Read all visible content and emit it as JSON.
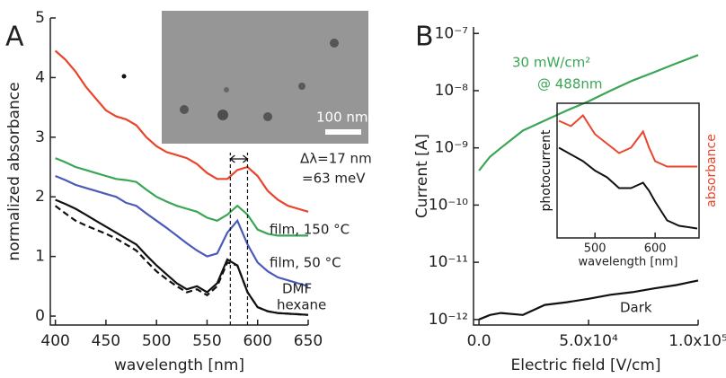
{
  "chart_data": [
    {
      "type": "line",
      "panel_label": "A",
      "xlabel": "wavelength [nm]",
      "ylabel": "normalized absorbance",
      "xlim": [
        395,
        650
      ],
      "ylim": [
        -0.15,
        5
      ],
      "xticks": [
        400,
        450,
        500,
        550,
        600,
        650
      ],
      "yticks": [
        0,
        1,
        2,
        3,
        4,
        5
      ],
      "x": [
        400,
        410,
        420,
        430,
        440,
        450,
        460,
        470,
        480,
        490,
        500,
        510,
        520,
        530,
        540,
        550,
        560,
        570,
        580,
        590,
        600,
        610,
        620,
        630,
        640,
        650
      ],
      "series": [
        {
          "name": "film, 150 °C",
          "color": "#e8452c",
          "values": [
            4.45,
            4.3,
            4.1,
            3.85,
            3.65,
            3.45,
            3.35,
            3.3,
            3.2,
            3.0,
            2.85,
            2.75,
            2.7,
            2.65,
            2.55,
            2.4,
            2.3,
            2.3,
            2.45,
            2.5,
            2.35,
            2.1,
            1.95,
            1.85,
            1.8,
            1.75
          ]
        },
        {
          "name": "film, 50 °C",
          "color": "#3aa655",
          "values": [
            2.65,
            2.58,
            2.5,
            2.45,
            2.4,
            2.35,
            2.3,
            2.28,
            2.25,
            2.12,
            2.0,
            1.92,
            1.85,
            1.8,
            1.75,
            1.65,
            1.6,
            1.7,
            1.85,
            1.7,
            1.45,
            1.38,
            1.35,
            1.35,
            1.35,
            1.35
          ]
        },
        {
          "name": "DMF",
          "color": "#4a5ab8",
          "values": [
            2.35,
            2.28,
            2.2,
            2.15,
            2.1,
            2.05,
            2.0,
            1.9,
            1.85,
            1.72,
            1.6,
            1.48,
            1.35,
            1.22,
            1.1,
            1.0,
            1.05,
            1.4,
            1.6,
            1.2,
            0.9,
            0.75,
            0.65,
            0.6,
            0.55,
            0.5
          ]
        },
        {
          "name": "hexane",
          "color": "#111111",
          "values": [
            1.95,
            1.88,
            1.8,
            1.7,
            1.6,
            1.5,
            1.4,
            1.3,
            1.2,
            1.02,
            0.85,
            0.7,
            0.55,
            0.45,
            0.5,
            0.4,
            0.55,
            0.95,
            0.85,
            0.4,
            0.15,
            0.08,
            0.05,
            0.04,
            0.03,
            0.02
          ]
        },
        {
          "color": "#111111",
          "dashed": true,
          "values": [
            1.85,
            1.72,
            1.6,
            1.52,
            1.45,
            1.38,
            1.3,
            1.2,
            1.1,
            0.92,
            0.75,
            0.62,
            0.5,
            0.4,
            0.45,
            0.35,
            0.5,
            0.9,
            0.85,
            0.4,
            0.15,
            0.08,
            0.05,
            0.04,
            0.03,
            0.02
          ]
        }
      ],
      "vlines": [
        573,
        590
      ],
      "annotations": [
        "Δλ=17 nm",
        "=63 meV",
        "100 nm"
      ]
    },
    {
      "type": "line",
      "panel_label": "B",
      "xlabel": "Electric field [V/cm]",
      "ylabel": "Current [A]",
      "log_y": true,
      "xlim": [
        -2500,
        100000
      ],
      "ylim": [
        8e-13,
        1.3e-07
      ],
      "xticks": [
        {
          "value": 0,
          "label": "0.0"
        },
        {
          "value": 50000,
          "label": "5.0x10⁴"
        },
        {
          "value": 100000,
          "label": "1.0x10⁵"
        }
      ],
      "yticks": [
        {
          "value": 1e-12,
          "label": "10⁻¹²"
        },
        {
          "value": 1e-11,
          "label": "10⁻¹¹"
        },
        {
          "value": 1e-10,
          "label": "10⁻¹⁰"
        },
        {
          "value": 1e-09,
          "label": "10⁻⁹"
        },
        {
          "value": 1e-08,
          "label": "10⁻⁸"
        },
        {
          "value": 1e-07,
          "label": "10⁻⁷"
        }
      ],
      "x": [
        0,
        5000,
        10000,
        20000,
        30000,
        40000,
        50000,
        60000,
        70000,
        80000,
        90000,
        100000
      ],
      "series": [
        {
          "name": "30 mW/cm²",
          "color": "#3aa655",
          "values": [
            4e-10,
            7e-10,
            1e-09,
            2e-09,
            3e-09,
            4.5e-09,
            6.5e-09,
            1e-08,
            1.5e-08,
            2.1e-08,
            3e-08,
            4.2e-08
          ]
        },
        {
          "name": "Dark",
          "color": "#111111",
          "values": [
            1e-12,
            1.2e-12,
            1.3e-12,
            1.2e-12,
            1.8e-12,
            2e-12,
            2.3e-12,
            2.7e-12,
            3e-12,
            3.5e-12,
            4e-12,
            4.8e-12
          ]
        }
      ],
      "annotations": [
        "@ 488nm"
      ]
    },
    {
      "type": "line",
      "xlabel": "wavelength [nm]",
      "xlim": [
        437,
        673
      ],
      "ylim": [
        0,
        1
      ],
      "xticks": [
        500,
        600
      ],
      "x": [
        440,
        460,
        480,
        500,
        520,
        540,
        560,
        570,
        580,
        590,
        600,
        620,
        640,
        670
      ],
      "series": [
        {
          "name": "photocurrent",
          "color": "#111111",
          "values": [
            0.67,
            0.62,
            0.57,
            0.5,
            0.45,
            0.37,
            0.37,
            0.39,
            0.41,
            0.35,
            0.27,
            0.13,
            0.09,
            0.07
          ]
        },
        {
          "name": "absorbance",
          "color": "#e8452c",
          "values": [
            0.87,
            0.83,
            0.91,
            0.77,
            0.7,
            0.63,
            0.67,
            0.73,
            0.79,
            0.67,
            0.57,
            0.53,
            0.53,
            0.53
          ]
        }
      ]
    }
  ]
}
